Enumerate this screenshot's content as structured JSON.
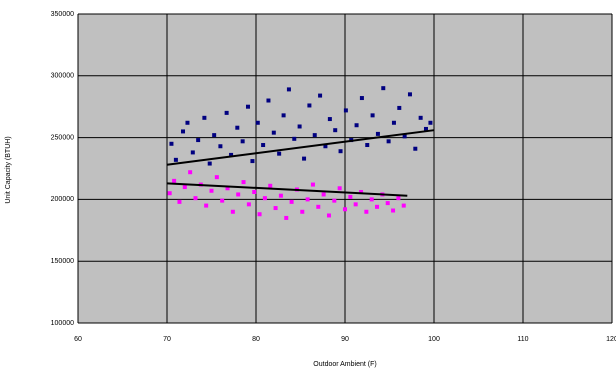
{
  "chart_data": {
    "type": "scatter",
    "x_label": "Outdoor Ambient (F)",
    "y_label": "Unit Capacity (BTUH)",
    "xlim": [
      60,
      120
    ],
    "xticks": [
      60,
      70,
      80,
      90,
      100,
      110,
      120
    ],
    "ylim": [
      100000,
      350000
    ],
    "yticks": [
      100000,
      150000,
      200000,
      250000,
      300000,
      350000
    ],
    "grid": true,
    "background": "#c0c0c0",
    "series": [
      {
        "color": "#000080",
        "x": [
          70.5,
          71,
          71.8,
          72.3,
          72.9,
          73.5,
          74.2,
          74.8,
          75.3,
          76,
          76.7,
          77.2,
          77.9,
          78.5,
          79.1,
          79.6,
          80.2,
          80.8,
          81.4,
          82,
          82.6,
          83.1,
          83.7,
          84.3,
          84.9,
          85.4,
          86,
          86.6,
          87.2,
          87.8,
          88.3,
          88.9,
          89.5,
          90.1,
          90.7,
          91.3,
          91.9,
          92.5,
          93.1,
          93.7,
          94.3,
          94.9,
          95.5,
          96.1,
          96.7,
          97.3,
          97.9,
          98.5,
          99.1,
          99.6
        ],
        "values": [
          245000,
          232000,
          255000,
          262000,
          238000,
          248000,
          266000,
          229000,
          252000,
          243000,
          270000,
          236000,
          258000,
          247000,
          275000,
          231000,
          262000,
          244000,
          280000,
          254000,
          237000,
          268000,
          289000,
          249000,
          259000,
          233000,
          276000,
          252000,
          284000,
          243000,
          265000,
          256000,
          239000,
          272000,
          248000,
          260000,
          282000,
          244000,
          268000,
          253000,
          290000,
          247000,
          262000,
          274000,
          251000,
          285000,
          241000,
          266000,
          257000,
          262000
        ]
      },
      {
        "color": "#ff00ff",
        "x": [
          70.3,
          70.8,
          71.4,
          72,
          72.6,
          73.2,
          73.8,
          74.4,
          75,
          75.6,
          76.2,
          76.8,
          77.4,
          78,
          78.6,
          79.2,
          79.8,
          80.4,
          81,
          81.6,
          82.2,
          82.8,
          83.4,
          84,
          84.6,
          85.2,
          85.8,
          86.4,
          87,
          87.6,
          88.2,
          88.8,
          89.4,
          90,
          90.6,
          91.2,
          91.8,
          92.4,
          93,
          93.6,
          94.2,
          94.8,
          95.4,
          96,
          96.6
        ],
        "values": [
          205000,
          215000,
          198000,
          210000,
          222000,
          201000,
          212000,
          195000,
          207000,
          218000,
          199000,
          209000,
          190000,
          204000,
          214000,
          196000,
          206000,
          188000,
          201000,
          211000,
          193000,
          203000,
          185000,
          198000,
          208000,
          190000,
          200000,
          212000,
          194000,
          204000,
          187000,
          199000,
          209000,
          192000,
          202000,
          196000,
          206000,
          190000,
          200000,
          194000,
          204000,
          197000,
          191000,
          201000,
          195000
        ]
      }
    ],
    "trendlines": [
      {
        "color": "#000000",
        "x": [
          70,
          100
        ],
        "values": [
          228000,
          256000
        ]
      },
      {
        "color": "#000000",
        "x": [
          70,
          97
        ],
        "values": [
          213000,
          203000
        ]
      }
    ]
  }
}
